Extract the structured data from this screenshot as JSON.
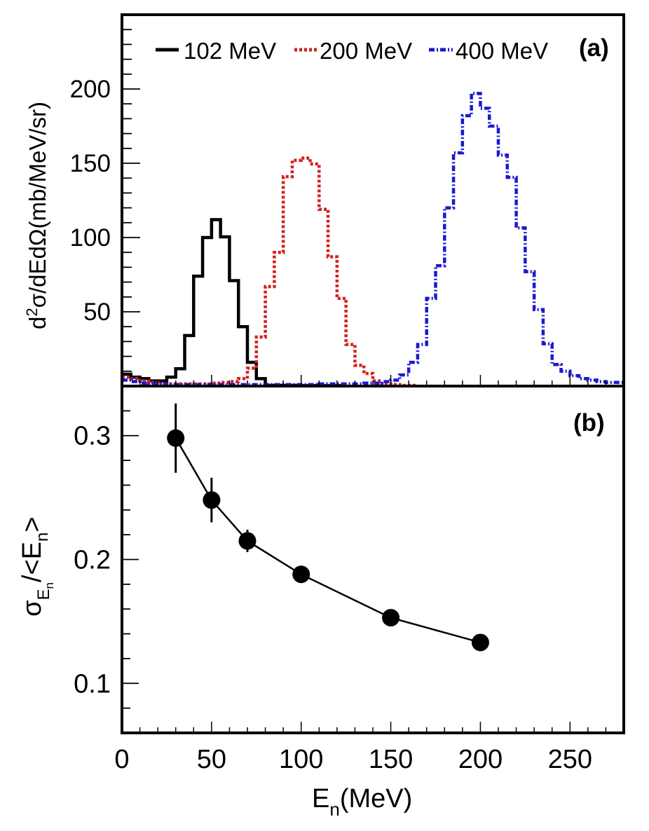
{
  "chart_data": [
    {
      "panel_label": "(a)",
      "type": "line",
      "style": "histogram-step",
      "title": "",
      "xlabel": "E_n(MeV)",
      "ylabel": "d²σ/dEdΩ(mb/MeV/sr)",
      "xlim": [
        0,
        280
      ],
      "ylim": [
        0,
        250
      ],
      "yticks": [
        50,
        100,
        150,
        200
      ],
      "bin_width": 5,
      "legend": {
        "placement": "top",
        "entries": [
          "102 MeV",
          "200 MeV",
          "400 MeV"
        ]
      },
      "series": [
        {
          "name": "102 MeV",
          "color": "#000000",
          "line_style": "solid",
          "bin_starts": [
            0,
            5,
            10,
            15,
            20,
            25,
            30,
            35,
            40,
            45,
            50,
            55,
            60,
            65,
            70,
            75,
            80,
            85,
            90,
            95,
            100,
            105,
            110,
            115,
            120
          ],
          "values": [
            8,
            6,
            5,
            3.5,
            3.5,
            6,
            11.7,
            34,
            74,
            100,
            112,
            100.5,
            71,
            40,
            16,
            5,
            0.5,
            0.5,
            0.5,
            0.5,
            0.3,
            0.3,
            0.3,
            0.3,
            0.3
          ]
        },
        {
          "name": "200 MeV",
          "color": "#d42020",
          "line_style": "dotted",
          "bin_starts": [
            0,
            5,
            10,
            15,
            20,
            25,
            30,
            35,
            40,
            45,
            50,
            55,
            60,
            65,
            70,
            75,
            80,
            85,
            90,
            95,
            100,
            105,
            110,
            115,
            120,
            125,
            130,
            135,
            140,
            145,
            150,
            155,
            160
          ],
          "values": [
            6,
            5,
            3.5,
            2.5,
            1.5,
            1.5,
            1.5,
            1.5,
            1.5,
            1.5,
            2,
            2.5,
            3,
            5,
            12,
            33,
            67,
            90,
            141,
            152,
            153.5,
            149.5,
            119,
            87,
            59,
            28,
            14,
            8.5,
            3.5,
            1.5,
            1,
            0.5,
            0.5
          ]
        },
        {
          "name": "400 MeV",
          "color": "#1a1ad0",
          "line_style": "dash-dot",
          "bin_starts": [
            0,
            5,
            10,
            15,
            20,
            25,
            30,
            35,
            40,
            45,
            50,
            55,
            60,
            65,
            70,
            75,
            80,
            85,
            90,
            95,
            100,
            105,
            110,
            115,
            120,
            125,
            130,
            135,
            140,
            145,
            150,
            155,
            160,
            165,
            170,
            175,
            180,
            185,
            190,
            195,
            200,
            205,
            210,
            215,
            220,
            225,
            230,
            235,
            240,
            245,
            250,
            255,
            260,
            265,
            270,
            275
          ],
          "values": [
            4,
            3,
            2,
            1.5,
            1.5,
            1,
            1,
            1,
            1,
            1,
            1,
            1,
            1,
            1,
            1,
            1,
            1,
            1,
            1,
            1,
            1,
            1,
            1.5,
            1.5,
            1.5,
            1.5,
            1.5,
            2,
            2,
            3,
            4,
            7.5,
            16,
            28,
            59,
            81,
            120,
            157,
            182,
            197,
            187,
            175,
            155.5,
            140.5,
            106.5,
            77,
            51.5,
            28.5,
            14.5,
            10,
            7,
            5,
            4,
            3,
            2.5,
            2.5
          ]
        }
      ]
    },
    {
      "panel_label": "(b)",
      "type": "scatter",
      "connected": true,
      "title": "",
      "xlabel": "E_n(MeV)",
      "ylabel": "σ_En/<E_n>",
      "xlim": [
        0,
        280
      ],
      "ylim": [
        0.06,
        0.34
      ],
      "xticks": [
        0,
        50,
        100,
        150,
        200,
        250
      ],
      "yticks": [
        0.1,
        0.2,
        0.3
      ],
      "series": [
        {
          "name": "resolution",
          "color": "#000000",
          "x": [
            30,
            50,
            70,
            100,
            150,
            200
          ],
          "y": [
            0.298,
            0.248,
            0.215,
            0.188,
            0.153,
            0.133
          ],
          "yerr": [
            0.028,
            0.018,
            0.009,
            0.006,
            0.003,
            0.002
          ]
        }
      ]
    }
  ],
  "labels": {
    "panel_a": "(a)",
    "panel_b": "(b)",
    "xlabel_main": "E",
    "xlabel_sub": "n",
    "xlabel_unit": "(MeV)",
    "ylabel_a_prefix": "d",
    "ylabel_a_sup": "2",
    "ylabel_a_rest": "σ/dEdΩ(mb/MeV/sr)",
    "ylabel_b_sigma": "σ",
    "ylabel_b_sub": "E",
    "ylabel_b_subsub": "n",
    "ylabel_b_rest": "/<E",
    "ylabel_b_rest_sub": "n",
    "ylabel_b_close": ">",
    "xtick_labels": [
      "0",
      "50",
      "100",
      "150",
      "200",
      "250"
    ],
    "ytick_labels_a": [
      "50",
      "100",
      "150",
      "200"
    ],
    "ytick_labels_b": [
      "0.1",
      "0.2",
      "0.3"
    ]
  }
}
